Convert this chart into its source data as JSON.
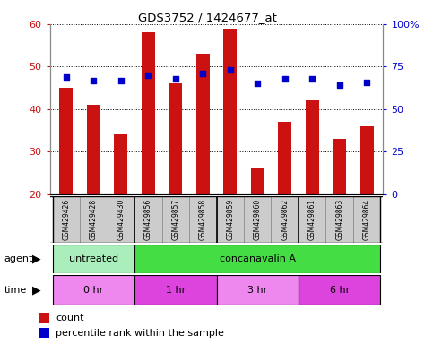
{
  "title": "GDS3752 / 1424677_at",
  "samples": [
    "GSM429426",
    "GSM429428",
    "GSM429430",
    "GSM429856",
    "GSM429857",
    "GSM429858",
    "GSM429859",
    "GSM429860",
    "GSM429862",
    "GSM429861",
    "GSM429863",
    "GSM429864"
  ],
  "counts": [
    45,
    41,
    34,
    58,
    46,
    53,
    59,
    26,
    37,
    42,
    33,
    36
  ],
  "percentile_ranks": [
    69,
    67,
    67,
    70,
    68,
    71,
    73,
    65,
    68,
    68,
    64,
    66
  ],
  "ylim_left": [
    20,
    60
  ],
  "ylim_right": [
    0,
    100
  ],
  "yticks_left": [
    20,
    30,
    40,
    50,
    60
  ],
  "yticks_right": [
    0,
    25,
    50,
    75,
    100
  ],
  "ytick_labels_right": [
    "0",
    "25",
    "50",
    "75",
    "100%"
  ],
  "bar_color": "#cc1111",
  "dot_color": "#0000cc",
  "agent_groups": [
    {
      "label": "untreated",
      "start": 0,
      "end": 3,
      "color": "#aaeebb"
    },
    {
      "label": "concanavalin A",
      "start": 3,
      "end": 12,
      "color": "#44dd44"
    }
  ],
  "time_groups": [
    {
      "label": "0 hr",
      "start": 0,
      "end": 3,
      "color": "#ee88ee"
    },
    {
      "label": "1 hr",
      "start": 3,
      "end": 6,
      "color": "#dd44dd"
    },
    {
      "label": "3 hr",
      "start": 6,
      "end": 9,
      "color": "#ee88ee"
    },
    {
      "label": "6 hr",
      "start": 9,
      "end": 12,
      "color": "#dd44dd"
    }
  ],
  "ylabel_left_color": "#cc1111",
  "ylabel_right_color": "#0000cc",
  "bar_width": 0.5,
  "cell_color": "#cccccc",
  "cell_border_color": "#888888"
}
